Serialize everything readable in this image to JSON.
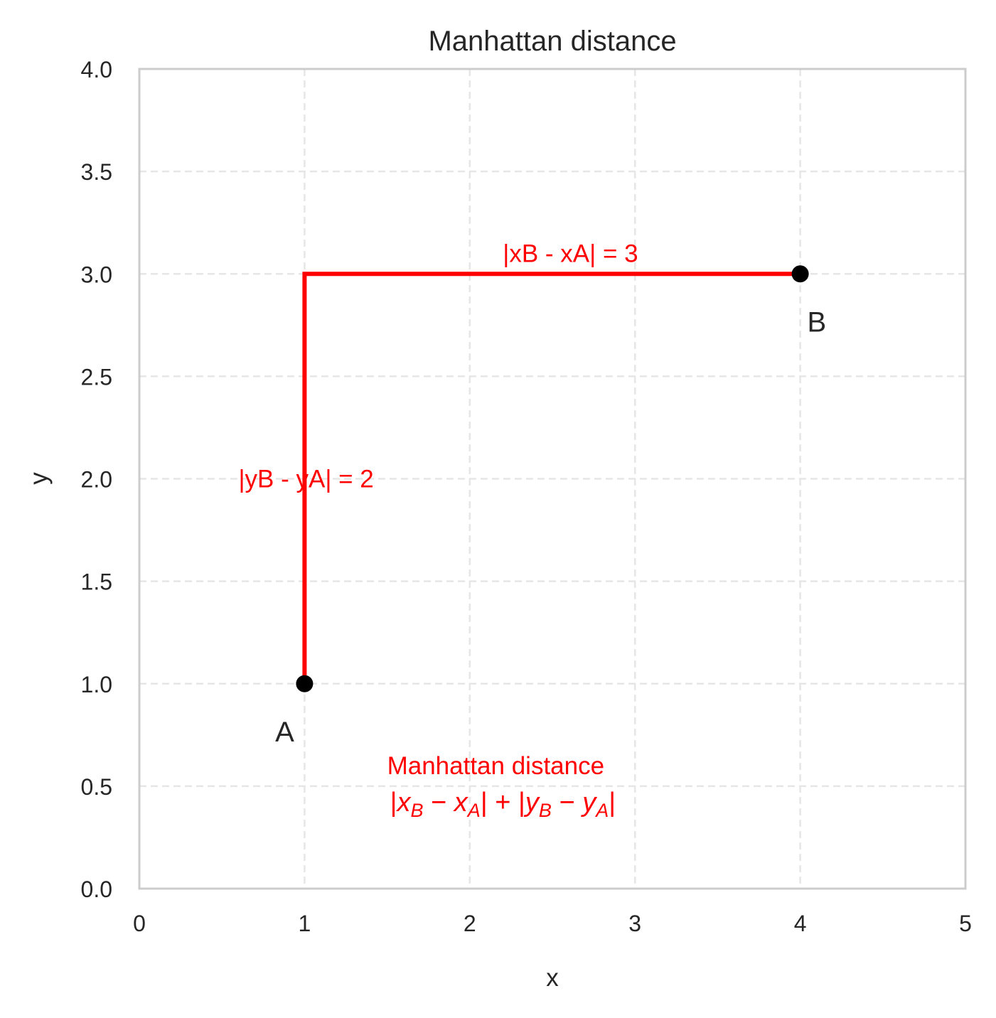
{
  "chart_data": {
    "type": "line",
    "title": "Manhattan distance",
    "xlabel": "x",
    "ylabel": "y",
    "xlim": [
      0,
      5
    ],
    "ylim": [
      0,
      4
    ],
    "xticks": [
      "0",
      "1",
      "2",
      "3",
      "4",
      "5"
    ],
    "yticks": [
      "0.0",
      "0.5",
      "1.0",
      "1.5",
      "2.0",
      "2.5",
      "3.0",
      "3.5",
      "4.0"
    ],
    "xtick_values": [
      0,
      1,
      2,
      3,
      4,
      5
    ],
    "ytick_values": [
      0,
      0.5,
      1,
      1.5,
      2,
      2.5,
      3,
      3.5,
      4
    ],
    "grid": true,
    "points": [
      {
        "name": "A",
        "x": 1,
        "y": 1,
        "label_x": 0.88,
        "label_y": 0.76
      },
      {
        "name": "B",
        "x": 4,
        "y": 3,
        "label_x": 4.1,
        "label_y": 2.76
      }
    ],
    "path": {
      "x": [
        1,
        1,
        4
      ],
      "y": [
        1,
        3,
        3
      ],
      "color": "#ff0000"
    },
    "annotations": [
      {
        "text": "|xB - xA| = 3",
        "x": 2.2,
        "y": 3.1,
        "color": "#ff0000"
      },
      {
        "text": "|yB - yA| = 2",
        "x": 0.6,
        "y": 2.0,
        "color": "#ff0000"
      },
      {
        "text": "Manhattan distance",
        "x": 1.5,
        "y": 0.6,
        "color": "#ff0000"
      }
    ],
    "formula": {
      "parts": [
        "|",
        "x",
        "B",
        " − ",
        "x",
        "A",
        "| + |",
        "y",
        "B",
        " − ",
        "y",
        "A",
        "|"
      ],
      "x": 1.5,
      "y": 0.42,
      "color": "#ff0000"
    }
  }
}
